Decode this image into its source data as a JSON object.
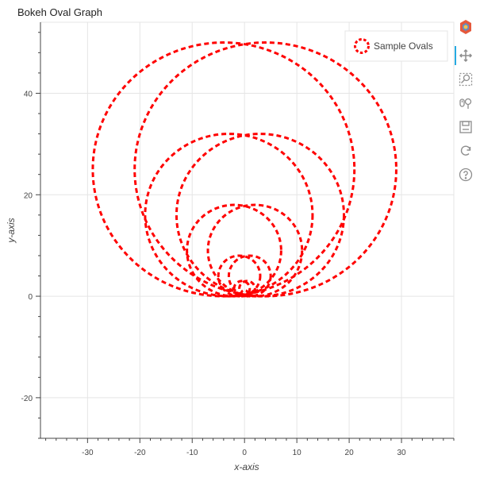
{
  "colors": {
    "oval": "#ff0000",
    "grid": "#e5e5e5",
    "axis": "#444444",
    "toolbar_active": "#26aae1",
    "toolbar_icon": "#8c8c8c"
  },
  "chart_data": {
    "type": "ellipse",
    "title": "Bokeh Oval Graph",
    "xlabel": "x-axis",
    "ylabel": "y-axis",
    "xlim": [
      -39,
      40
    ],
    "ylim": [
      -28,
      54
    ],
    "xticks": [
      -30,
      -20,
      -10,
      0,
      10,
      20,
      30
    ],
    "yticks": [
      -20,
      0,
      20,
      40
    ],
    "grid": true,
    "legend": {
      "position": "top-right",
      "entries": [
        "Sample Ovals"
      ]
    },
    "series": [
      {
        "name": "Sample Ovals",
        "line_dash": "dashed",
        "ellipses": [
          {
            "x": -4,
            "y": 25,
            "width": 50,
            "height": 50
          },
          {
            "x": 4,
            "y": 25,
            "width": 50,
            "height": 50
          },
          {
            "x": -3,
            "y": 16,
            "width": 32,
            "height": 32
          },
          {
            "x": 3,
            "y": 16,
            "width": 32,
            "height": 32
          },
          {
            "x": -2,
            "y": 9,
            "width": 18,
            "height": 18
          },
          {
            "x": 2,
            "y": 9,
            "width": 18,
            "height": 18
          },
          {
            "x": -1,
            "y": 4,
            "width": 8,
            "height": 8
          },
          {
            "x": 1,
            "y": 4,
            "width": 8,
            "height": 8
          },
          {
            "x": -0.5,
            "y": 1.5,
            "width": 3,
            "height": 3
          },
          {
            "x": 0.5,
            "y": 1.5,
            "width": 3,
            "height": 3
          },
          {
            "x": 0,
            "y": 0.6,
            "width": 1.2,
            "height": 1.2
          }
        ]
      }
    ]
  },
  "toolbar": {
    "tools": [
      {
        "name": "bokeh-logo-icon"
      },
      {
        "name": "pan-icon"
      },
      {
        "name": "box-zoom-icon"
      },
      {
        "name": "wheel-zoom-icon"
      },
      {
        "name": "save-icon"
      },
      {
        "name": "reset-icon"
      },
      {
        "name": "help-icon"
      }
    ]
  }
}
